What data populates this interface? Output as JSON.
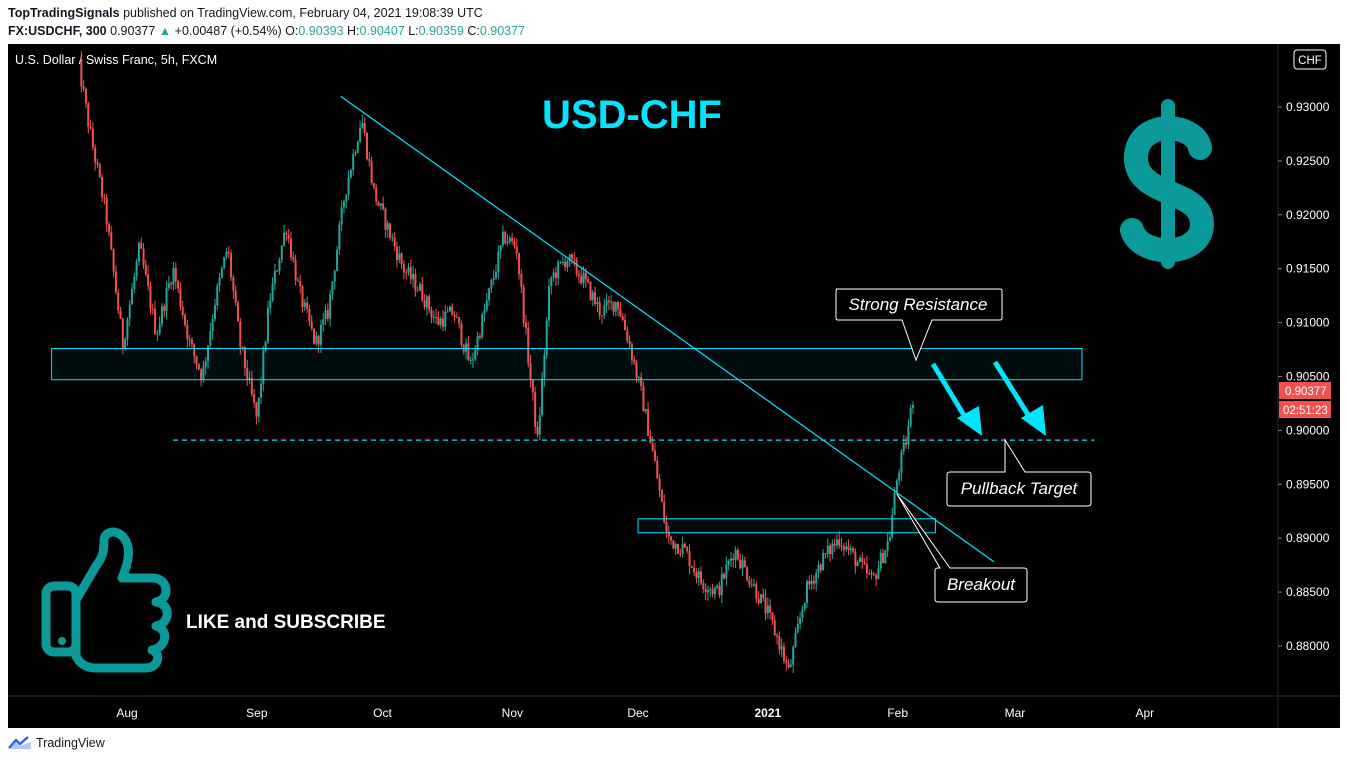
{
  "header": {
    "publisher": "TopTradingSignals",
    "published_text": " published on TradingView.com, February 04, 2021 19:08:39 UTC",
    "symbol": "FX:USDCHF, 300",
    "last": "0.90377",
    "change_arrow": "▲",
    "change": "+0.00487 (+0.54%)",
    "o_label": "O:",
    "o": "0.90393",
    "h_label": "H:",
    "h": "0.90407",
    "l_label": "L:",
    "l": "0.90359",
    "c_label": "C:",
    "c": "0.90377"
  },
  "pane_title": "U.S. Dollar / Swiss Franc, 5h, FXCM",
  "currency_badge": "CHF",
  "footer_brand": "TradingView",
  "colors": {
    "background": "#000000",
    "up": "#26a69a",
    "down": "#ef5350",
    "annotation": "#00e5ff",
    "dollar_icon": "#0b9a99",
    "last_price_tag": "#ef5350"
  },
  "annotations": {
    "big_title": "USD-CHF",
    "strong_resistance": "Strong Resistance",
    "pullback_target": "Pullback Target",
    "breakout": "Breakout",
    "like_subscribe": "LIKE and SUBSCRIBE",
    "dollar_icon": "dollar-sign-icon",
    "thumb_icon": "thumbs-up-icon"
  },
  "chart_data": {
    "type": "candlestick",
    "title": "U.S. Dollar / Swiss Franc, 5h, FXCM",
    "x_ticks": [
      "Aug",
      "Sep",
      "Oct",
      "Nov",
      "Dec",
      "2021",
      "Feb",
      "Mar",
      "Apr"
    ],
    "y_ticks": [
      "0.93000",
      "0.92500",
      "0.92000",
      "0.91500",
      "0.91000",
      "0.90500",
      "0.90000",
      "0.89500",
      "0.89000",
      "0.88500",
      "0.88000"
    ],
    "ylim": [
      0.8762,
      0.935
    ],
    "last_price": "0.90377",
    "countdown": "02:51:23",
    "price_path": [
      [
        "2020-07-20",
        0.935
      ],
      [
        "2020-07-23",
        0.928
      ],
      [
        "2020-07-27",
        0.92
      ],
      [
        "2020-07-31",
        0.908
      ],
      [
        "2020-08-04",
        0.917
      ],
      [
        "2020-08-08",
        0.909
      ],
      [
        "2020-08-12",
        0.915
      ],
      [
        "2020-08-16",
        0.908
      ],
      [
        "2020-08-19",
        0.905
      ],
      [
        "2020-08-22",
        0.912
      ],
      [
        "2020-08-25",
        0.917
      ],
      [
        "2020-08-28",
        0.908
      ],
      [
        "2020-09-01",
        0.901
      ],
      [
        "2020-09-04",
        0.912
      ],
      [
        "2020-09-08",
        0.919
      ],
      [
        "2020-09-11",
        0.913
      ],
      [
        "2020-09-15",
        0.908
      ],
      [
        "2020-09-18",
        0.911
      ],
      [
        "2020-09-22",
        0.922
      ],
      [
        "2020-09-26",
        0.929
      ],
      [
        "2020-09-29",
        0.922
      ],
      [
        "2020-10-02",
        0.919
      ],
      [
        "2020-10-06",
        0.915
      ],
      [
        "2020-10-10",
        0.913
      ],
      [
        "2020-10-14",
        0.91
      ],
      [
        "2020-10-18",
        0.911
      ],
      [
        "2020-10-22",
        0.906
      ],
      [
        "2020-10-26",
        0.912
      ],
      [
        "2020-10-30",
        0.918
      ],
      [
        "2020-11-02",
        0.917
      ],
      [
        "2020-11-05",
        0.906
      ],
      [
        "2020-11-07",
        0.899
      ],
      [
        "2020-11-10",
        0.914
      ],
      [
        "2020-11-14",
        0.916
      ],
      [
        "2020-11-18",
        0.914
      ],
      [
        "2020-11-22",
        0.911
      ],
      [
        "2020-11-26",
        0.912
      ],
      [
        "2020-11-29",
        0.908
      ],
      [
        "2020-12-02",
        0.903
      ],
      [
        "2020-12-05",
        0.897
      ],
      [
        "2020-12-08",
        0.89
      ],
      [
        "2020-12-12",
        0.889
      ],
      [
        "2020-12-16",
        0.886
      ],
      [
        "2020-12-20",
        0.885
      ],
      [
        "2020-12-24",
        0.889
      ],
      [
        "2020-12-28",
        0.886
      ],
      [
        "2021-01-01",
        0.883
      ],
      [
        "2021-01-04",
        0.88
      ],
      [
        "2021-01-06",
        0.8775
      ],
      [
        "2021-01-10",
        0.885
      ],
      [
        "2021-01-14",
        0.888
      ],
      [
        "2021-01-18",
        0.89
      ],
      [
        "2021-01-22",
        0.888
      ],
      [
        "2021-01-26",
        0.886
      ],
      [
        "2021-01-30",
        0.89
      ],
      [
        "2021-02-01",
        0.896
      ],
      [
        "2021-02-03",
        0.899
      ],
      [
        "2021-02-05",
        0.9038
      ]
    ],
    "zones": [
      {
        "name": "resistance-zone",
        "start": "2020-07-14",
        "end": "2021-03-17",
        "low": 0.9047,
        "high": 0.9076
      },
      {
        "name": "breakout-zone",
        "start": "2020-12-01",
        "end": "2021-02-10",
        "low": 0.8905,
        "high": 0.8918
      }
    ],
    "pullback_level": {
      "value": 0.8991,
      "start": "2020-08-12",
      "end": "2021-03-20"
    },
    "trendline": {
      "start": [
        "2020-09-21",
        0.931
      ],
      "end": [
        "2021-02-24",
        0.8878
      ]
    }
  }
}
